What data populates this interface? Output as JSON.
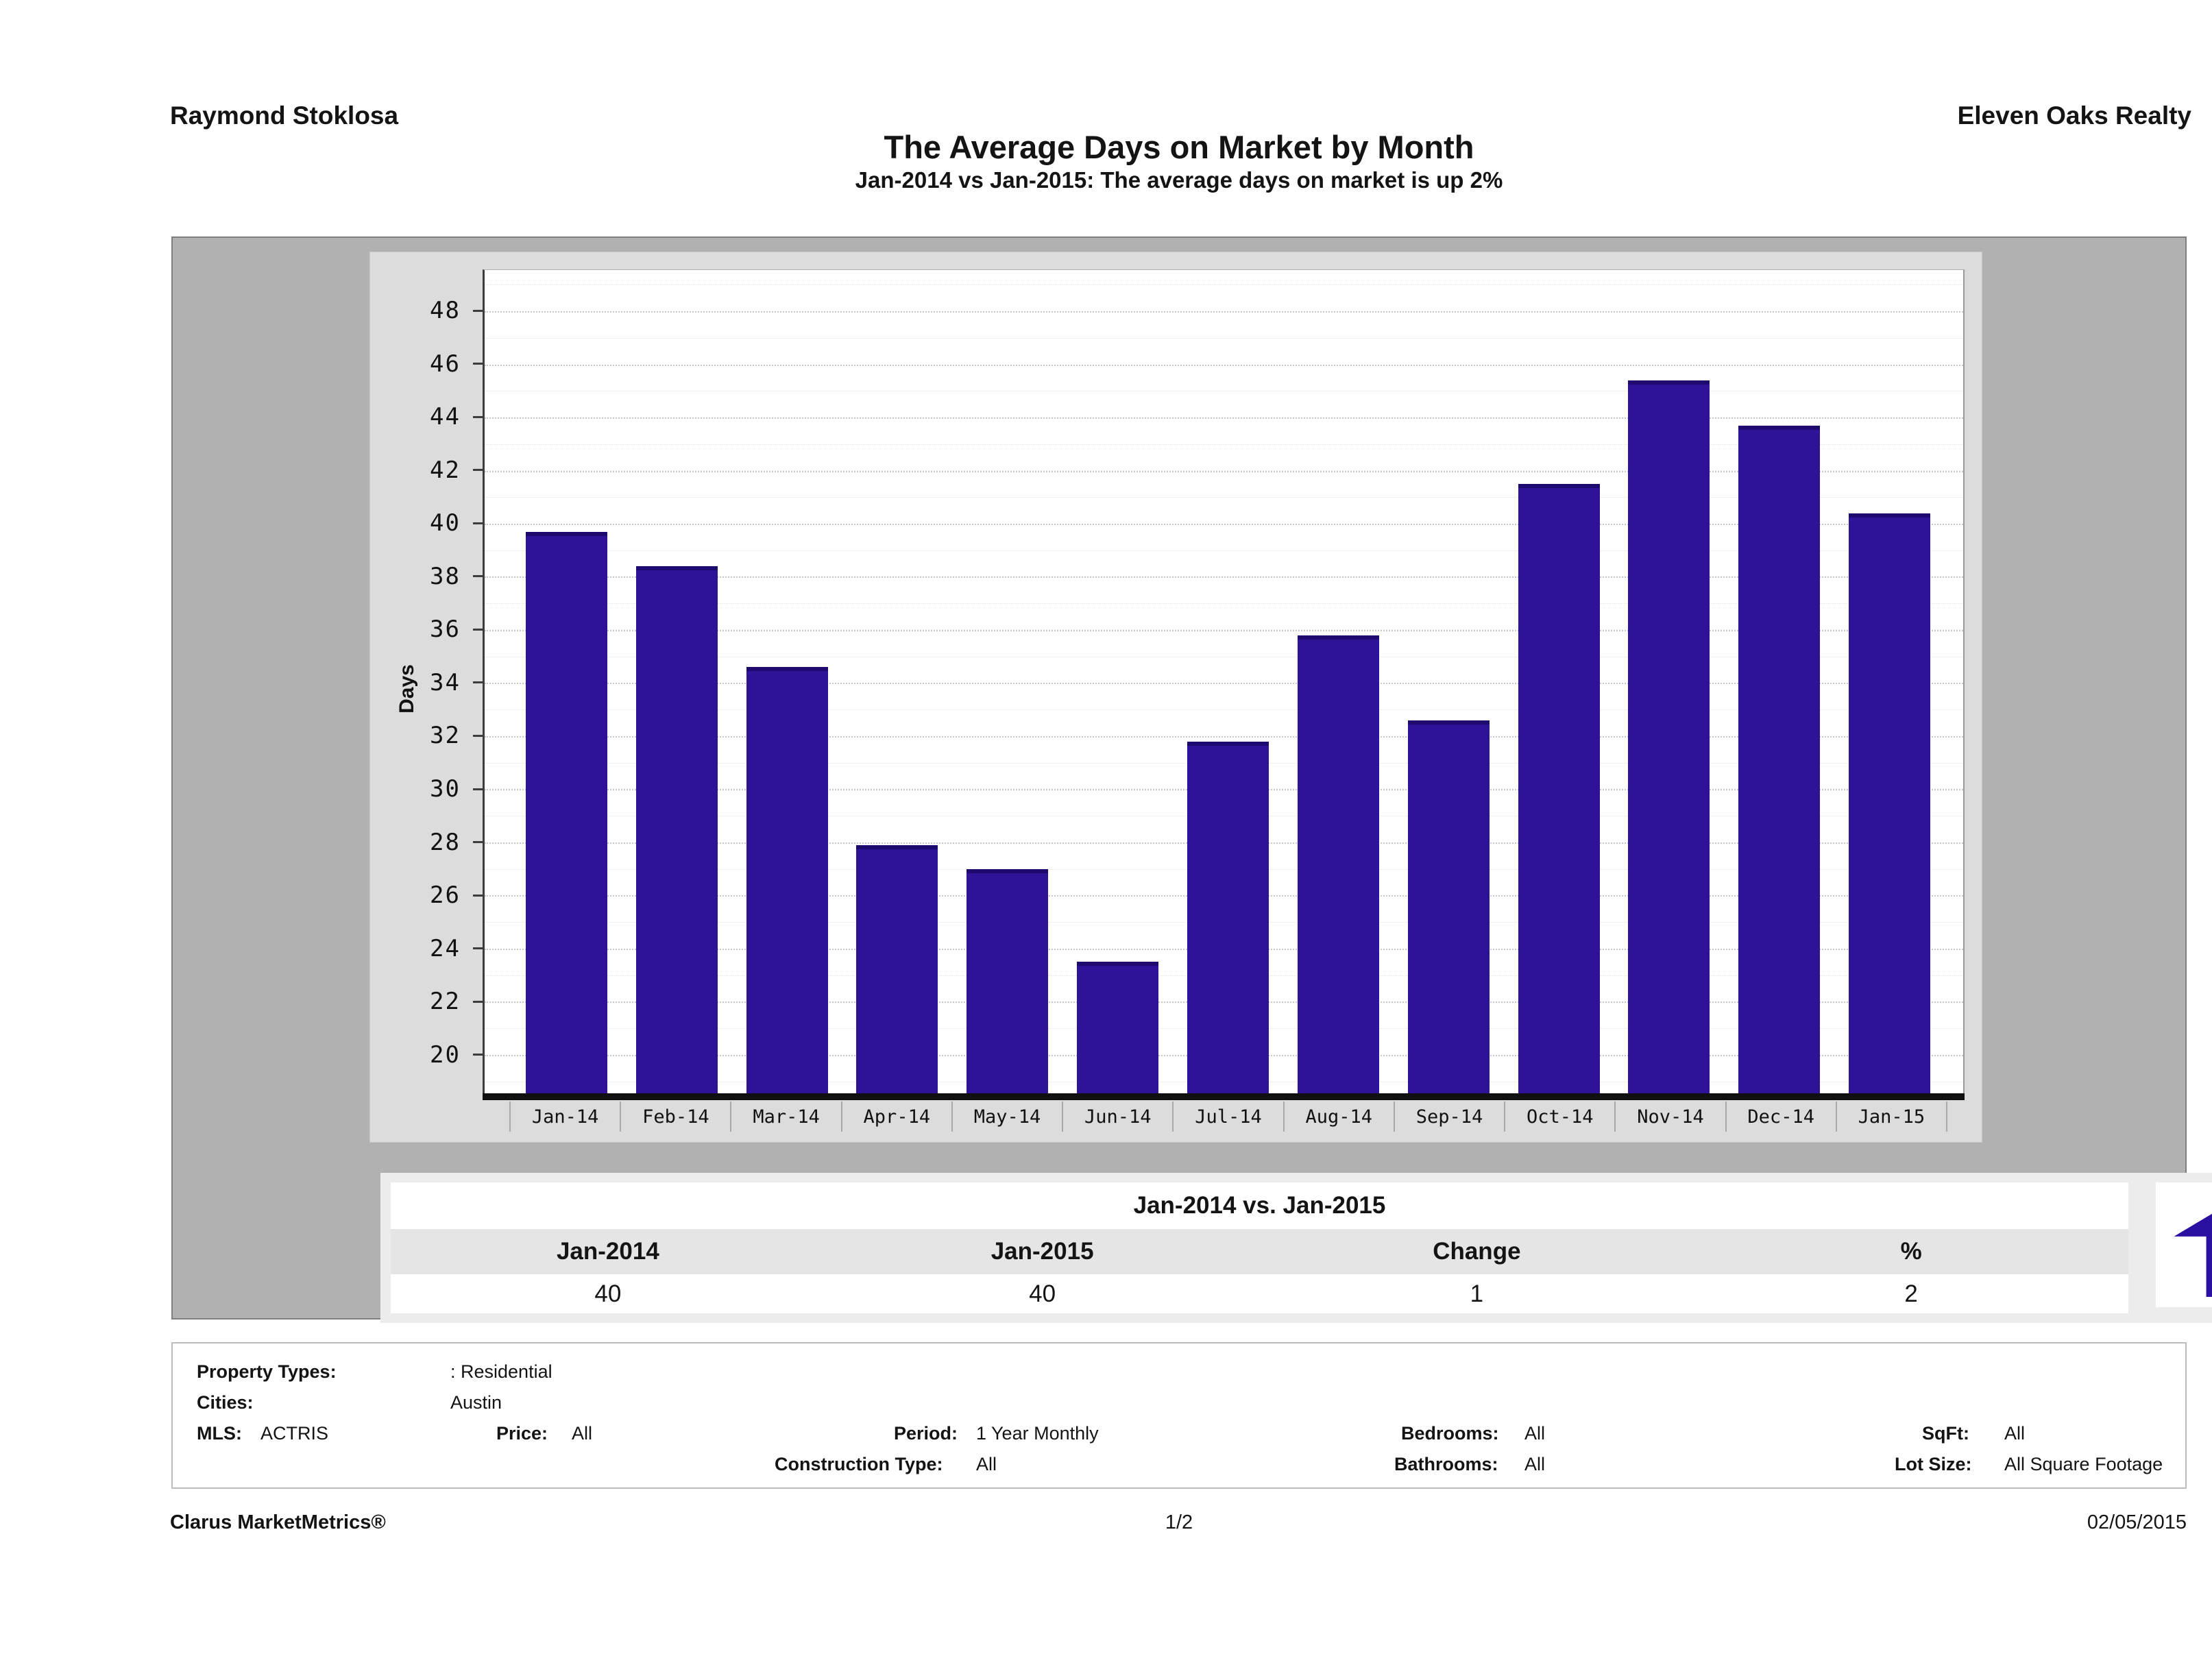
{
  "header": {
    "agent": "Raymond Stoklosa",
    "brokerage": "Eleven Oaks Realty",
    "title": "The Average Days on Market by Month",
    "subtitle": "Jan-2014 vs Jan-2015: The average days on market is up 2%"
  },
  "chart_data": {
    "type": "bar",
    "title": "The Average Days on Market by Month",
    "categories": [
      "Jan-14",
      "Feb-14",
      "Mar-14",
      "Apr-14",
      "May-14",
      "Jun-14",
      "Jul-14",
      "Aug-14",
      "Sep-14",
      "Oct-14",
      "Nov-14",
      "Dec-14",
      "Jan-15"
    ],
    "values": [
      39.7,
      38.4,
      34.6,
      27.9,
      27.0,
      23.5,
      31.8,
      35.8,
      32.6,
      41.5,
      45.4,
      43.7,
      40.4
    ],
    "xlabel": "",
    "ylabel": "Days",
    "yticks": [
      20,
      22,
      24,
      26,
      28,
      30,
      32,
      34,
      36,
      38,
      40,
      42,
      44,
      46,
      48
    ],
    "ylim": [
      18.55,
      49.55
    ],
    "grid": true,
    "legend": false,
    "bar_color": "#2e1398"
  },
  "comparison": {
    "title": "Jan-2014 vs. Jan-2015",
    "columns": [
      "Jan-2014",
      "Jan-2015",
      "Change",
      "%"
    ],
    "values": [
      "40",
      "40",
      "1",
      "2"
    ],
    "badge": {
      "label": "+2%",
      "direction": "up",
      "color": "#2c10a2"
    }
  },
  "filters": {
    "property_types_label": "Property Types:",
    "property_types_value": ": Residential",
    "cities_label": "Cities:",
    "cities_value": "Austin",
    "mls_label": "MLS:",
    "mls_value": "ACTRIS",
    "price_label": "Price:",
    "price_value": "All",
    "period_label": "Period:",
    "period_value": "1 Year Monthly",
    "construction_label": "Construction Type:",
    "construction_value": "All",
    "bedrooms_label": "Bedrooms:",
    "bedrooms_value": "All",
    "bathrooms_label": "Bathrooms:",
    "bathrooms_value": "All",
    "sqft_label": "SqFt:",
    "sqft_value": "All",
    "lotsize_label": "Lot Size:",
    "lotsize_value": "All Square Footage"
  },
  "footer": {
    "left": "Clarus MarketMetrics®",
    "center": "1/2",
    "right": "02/05/2015"
  }
}
